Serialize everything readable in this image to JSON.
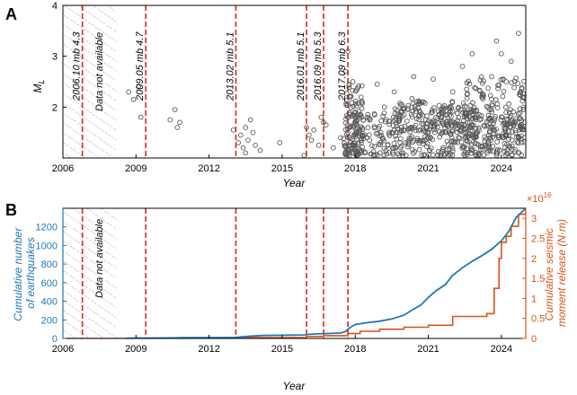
{
  "colors": {
    "scatter_edge": "#555555",
    "event_line": "#e0241b",
    "count_line": "#1f77b4",
    "moment_line": "#d95319",
    "axis": "#000000"
  },
  "panels": {
    "a": {
      "letter": "A"
    },
    "b": {
      "letter": "B"
    }
  },
  "no_data_label": "Data not available",
  "events": [
    {
      "year": 2006.8,
      "label": "2006.10 mb 4.3"
    },
    {
      "year": 2009.4,
      "label": "2009.05 mb 4.7"
    },
    {
      "year": 2013.1,
      "label": "2013.02 mb 5.1"
    },
    {
      "year": 2016.0,
      "label": "2016.01 mb 5.1"
    },
    {
      "year": 2016.7,
      "label": "2016.09 mb 5.3"
    },
    {
      "year": 2017.7,
      "label": "2017.09 mb 6.3"
    }
  ],
  "chart_data": [
    {
      "type": "scatter",
      "xlabel": "Year",
      "ylabel": "M",
      "ylabel_sub": "L",
      "xlim": [
        2006,
        2025
      ],
      "ylim": [
        1,
        4
      ],
      "xticks": [
        2006,
        2009,
        2012,
        2015,
        2018,
        2021,
        2024
      ],
      "yticks": [
        2,
        3,
        4
      ],
      "no_data_range": [
        2006,
        2008.2
      ],
      "points_x": [
        2008.7,
        2008.9,
        2009.1,
        2009.2,
        2010.4,
        2010.6,
        2010.7,
        2010.8,
        2013.0,
        2013.2,
        2013.3,
        2013.4,
        2013.5,
        2013.5,
        2013.6,
        2013.7,
        2013.8,
        2013.9,
        2014.1,
        2014.9,
        2015.9,
        2016.0,
        2016.1,
        2016.2,
        2016.3,
        2016.5,
        2016.6,
        2016.7,
        2016.8,
        2017.1,
        2017.4,
        2017.6,
        2017.7,
        2017.8,
        2017.9,
        2018.0,
        2018.1,
        2018.3,
        2018.6,
        2018.9,
        2019.2,
        2019.6,
        2020.0,
        2020.4,
        2020.8,
        2021.2,
        2021.6,
        2022.0,
        2022.4,
        2022.8,
        2023.2,
        2023.6,
        2023.8,
        2024.0,
        2024.2,
        2024.4,
        2024.7,
        2024.9
      ],
      "points_y": [
        2.3,
        2.15,
        2.4,
        1.8,
        1.75,
        1.95,
        1.6,
        1.7,
        1.55,
        1.3,
        1.45,
        1.2,
        1.6,
        1.1,
        1.35,
        1.75,
        1.5,
        1.25,
        1.15,
        1.3,
        1.05,
        1.6,
        1.45,
        1.35,
        1.55,
        1.25,
        1.8,
        1.7,
        1.65,
        1.2,
        1.4,
        2.7,
        3.1,
        2.2,
        2.5,
        1.9,
        1.6,
        1.45,
        1.75,
        2.45,
        2.0,
        2.3,
        1.85,
        2.6,
        2.1,
        2.55,
        2.0,
        2.3,
        2.8,
        3.05,
        2.2,
        2.6,
        3.3,
        3.05,
        2.5,
        2.9,
        3.45,
        2.0
      ],
      "dense_regions": [
        {
          "x_range": [
            2017.5,
            2025.0
          ],
          "y_range": [
            1.05,
            2.0
          ],
          "density": 420
        },
        {
          "x_range": [
            2017.6,
            2018.3
          ],
          "y_range": [
            1.05,
            2.5
          ],
          "density": 90
        },
        {
          "x_range": [
            2022.5,
            2025.0
          ],
          "y_range": [
            1.4,
            2.6
          ],
          "density": 160
        },
        {
          "x_range": [
            2019.5,
            2022.5
          ],
          "y_range": [
            1.5,
            2.2
          ],
          "density": 120
        }
      ]
    },
    {
      "type": "line",
      "xlabel": "Year",
      "ylabel": "Cumulative number of earthquakes",
      "ylabel_lines": [
        "Cumulative number",
        "of earthquakes"
      ],
      "y2label_lines": [
        "Cumulative seismic",
        "moment release (N·m)"
      ],
      "y2_exponent": "×10",
      "y2_exponent_power": "16",
      "xlim": [
        2006,
        2025
      ],
      "ylim": [
        0,
        1400
      ],
      "y2lim": [
        0,
        3.25
      ],
      "xticks": [
        2006,
        2009,
        2012,
        2015,
        2018,
        2021,
        2024
      ],
      "yticks": [
        0,
        200,
        400,
        600,
        800,
        1000,
        1200
      ],
      "y2ticks": [
        0,
        0.5,
        1,
        1.5,
        2,
        2.5,
        3
      ],
      "no_data_range": [
        2006,
        2008.2
      ],
      "series": [
        {
          "name": "Cumulative number of earthquakes",
          "axis": "left",
          "x": [
            2008.6,
            2009.0,
            2009.3,
            2010.5,
            2010.9,
            2013.0,
            2013.6,
            2014.2,
            2015.9,
            2016.1,
            2016.7,
            2017.4,
            2017.6,
            2017.8,
            2018.0,
            2018.5,
            2019.0,
            2019.5,
            2020.0,
            2020.3,
            2020.7,
            2021.0,
            2021.3,
            2021.7,
            2022.0,
            2022.4,
            2022.8,
            2023.2,
            2023.6,
            2024.0,
            2024.3,
            2024.6,
            2025.0
          ],
          "y": [
            1,
            3,
            4,
            6,
            8,
            10,
            22,
            32,
            38,
            44,
            52,
            58,
            75,
            120,
            150,
            170,
            185,
            210,
            250,
            300,
            360,
            440,
            510,
            580,
            680,
            760,
            830,
            890,
            960,
            1050,
            1150,
            1300,
            1400
          ]
        },
        {
          "name": "Cumulative seismic moment release",
          "axis": "right",
          "step": true,
          "x": [
            2006.0,
            2013.1,
            2016.0,
            2016.7,
            2017.7,
            2018.2,
            2019.0,
            2020.0,
            2021.0,
            2022.0,
            2023.4,
            2023.7,
            2023.9,
            2024.0,
            2024.2,
            2024.4,
            2024.7,
            2025.0
          ],
          "y": [
            0.0,
            0.02,
            0.05,
            0.07,
            0.12,
            0.18,
            0.23,
            0.28,
            0.33,
            0.55,
            0.62,
            1.25,
            2.0,
            2.4,
            2.55,
            2.8,
            3.1,
            3.25
          ]
        }
      ]
    }
  ]
}
